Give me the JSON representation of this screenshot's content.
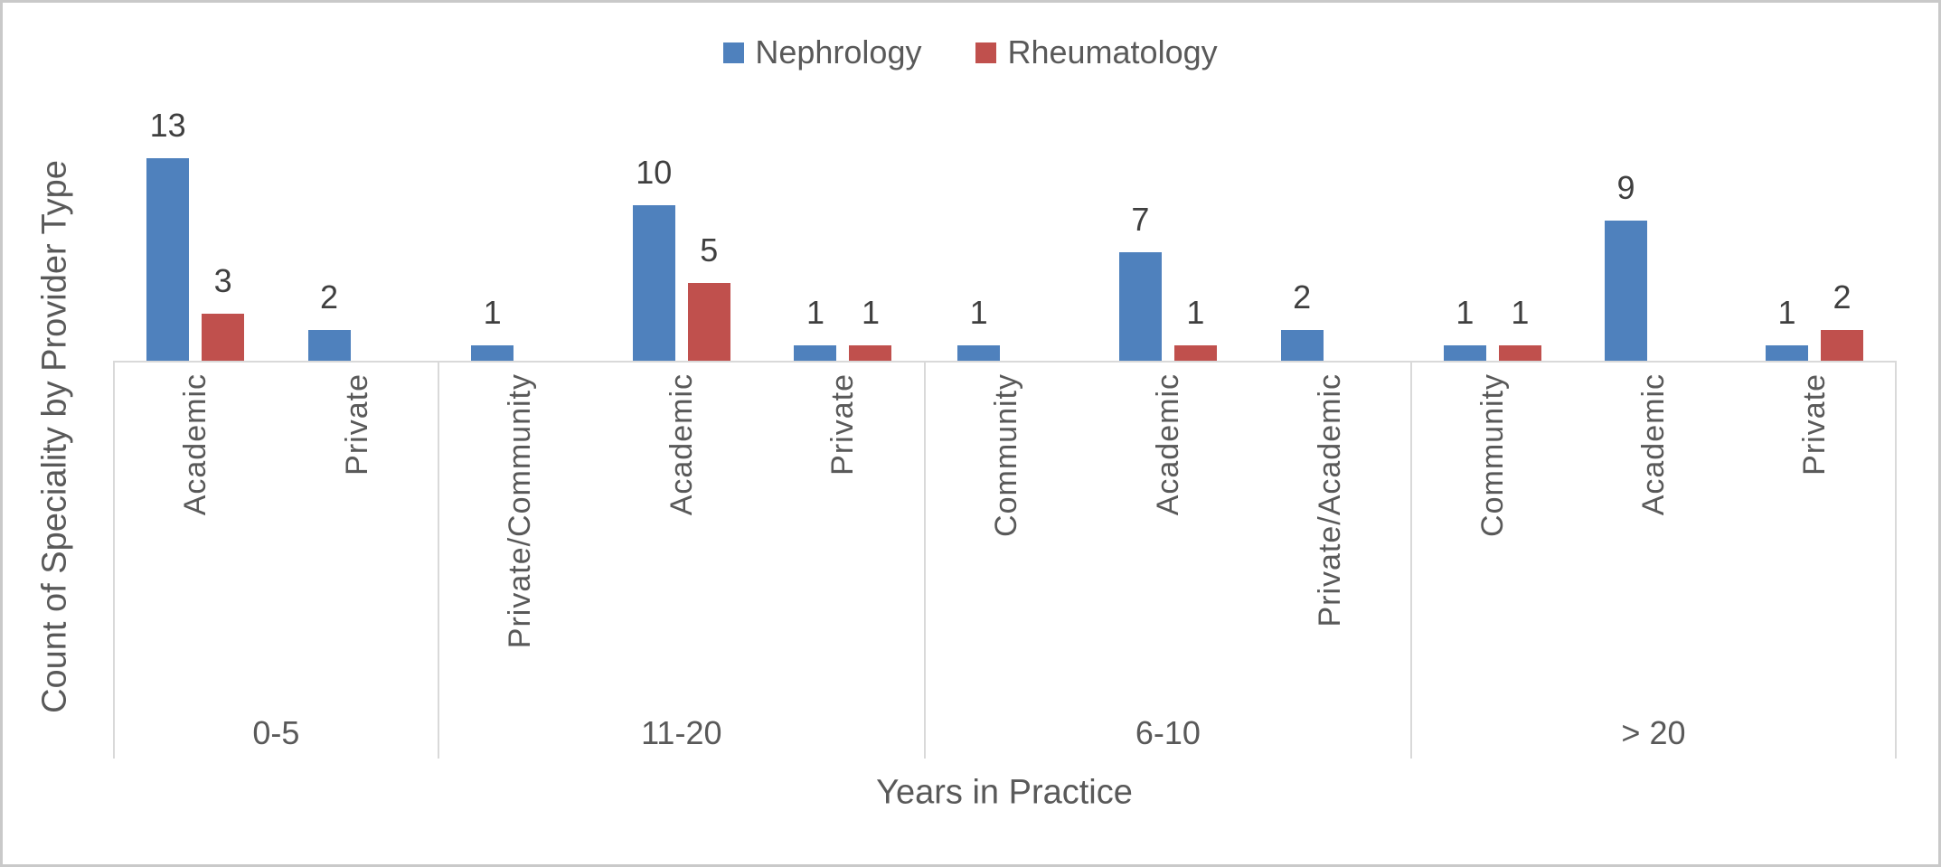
{
  "chart_data": {
    "type": "bar",
    "title": "",
    "xlabel": "Years in Practice",
    "ylabel": "Count of Speciality by Provider Type",
    "legend_position": "top",
    "gridlines": false,
    "data_labels": true,
    "value_label_color": "#3f3f3f",
    "text_color": "#595959",
    "axis_line_color": "#d9d9d9",
    "series": [
      {
        "name": "Nephrology",
        "color": "#4f81bd"
      },
      {
        "name": "Rheumatology",
        "color": "#c0504d"
      }
    ],
    "groups": [
      {
        "label": "0-5",
        "categories": [
          {
            "label": "Academic",
            "values": [
              13,
              3
            ]
          },
          {
            "label": "Private",
            "values": [
              2,
              null
            ]
          }
        ]
      },
      {
        "label": "11-20",
        "categories": [
          {
            "label": "Private/Community",
            "values": [
              1,
              null
            ]
          },
          {
            "label": "Academic",
            "values": [
              10,
              5
            ]
          },
          {
            "label": "Private",
            "values": [
              1,
              1
            ]
          }
        ]
      },
      {
        "label": "6-10",
        "categories": [
          {
            "label": "Community",
            "values": [
              1,
              null
            ]
          },
          {
            "label": "Academic",
            "values": [
              7,
              1
            ]
          },
          {
            "label": "Private/Academic",
            "values": [
              2,
              null
            ]
          }
        ]
      },
      {
        "label": "> 20",
        "categories": [
          {
            "label": "Community",
            "values": [
              1,
              1
            ]
          },
          {
            "label": "Academic",
            "values": [
              9,
              null
            ]
          },
          {
            "label": "Private",
            "values": [
              1,
              2
            ]
          }
        ]
      }
    ]
  }
}
